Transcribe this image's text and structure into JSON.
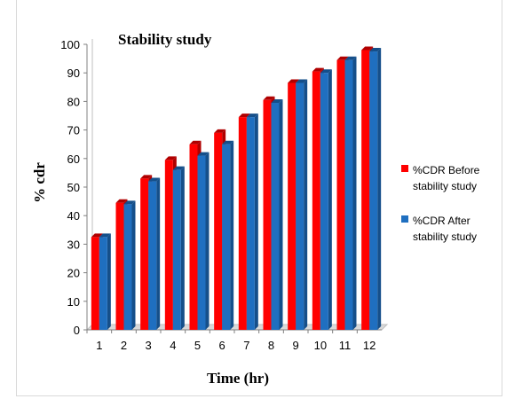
{
  "chart_data": {
    "type": "bar",
    "title": "Stability study",
    "xlabel": "Time (hr)",
    "ylabel": "% cdr",
    "categories": [
      "1",
      "2",
      "3",
      "4",
      "5",
      "6",
      "7",
      "8",
      "9",
      "10",
      "11",
      "12"
    ],
    "series": [
      {
        "name": "%CDR Before stability study",
        "color": "#ff0000",
        "values": [
          32.5,
          44.5,
          53,
          59.5,
          65,
          69,
          74.5,
          80.5,
          86.5,
          90.5,
          94.5,
          98
        ]
      },
      {
        "name": "%CDR After stability study",
        "color": "#1f6fc0",
        "values": [
          32.5,
          44,
          52,
          56,
          61,
          65,
          74.5,
          79.5,
          86.5,
          90,
          94.5,
          97.5
        ]
      }
    ],
    "ylim": [
      0,
      100
    ],
    "yticks": [
      0,
      10,
      20,
      30,
      40,
      50,
      60,
      70,
      80,
      90,
      100
    ],
    "grid": false,
    "legend": {
      "placement": "right",
      "entries": [
        [
          "%CDR Before",
          "stability study"
        ],
        [
          "%CDR After",
          "stability study"
        ]
      ]
    }
  }
}
